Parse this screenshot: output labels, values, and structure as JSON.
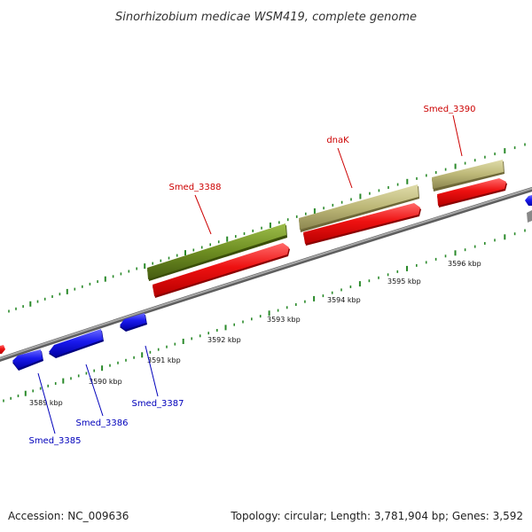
{
  "title": "Sinorhizobium medicae WSM419, complete genome",
  "footer": {
    "accession": "Accession: NC_009636",
    "info": "Topology: circular; Length: 3,781,904 bp; Genes: 3,592"
  },
  "colors": {
    "forward_cds": "#ee1111",
    "forward_gene_tan": "#bdb878",
    "forward_gene_green": "#6e8e22",
    "reverse_cds": "#1a1aee",
    "forward_label": "#cc0000",
    "reverse_label": "#0000bb",
    "backbone": "#8a8a8a",
    "ticks": "#2a8a2a"
  },
  "ruler": {
    "unit": "kbp",
    "labels": [
      "3589 kbp",
      "3590 kbp",
      "3591 kbp",
      "3592 kbp",
      "3593 kbp",
      "3594 kbp",
      "3595 kbp",
      "3596 kbp"
    ]
  },
  "genes": {
    "forward": [
      {
        "label": "Smed_3388"
      },
      {
        "label": "dnaK"
      },
      {
        "label": "Smed_3390"
      }
    ],
    "reverse": [
      {
        "label": "Smed_3385"
      },
      {
        "label": "Smed_3386"
      },
      {
        "label": "Smed_3387"
      }
    ]
  }
}
